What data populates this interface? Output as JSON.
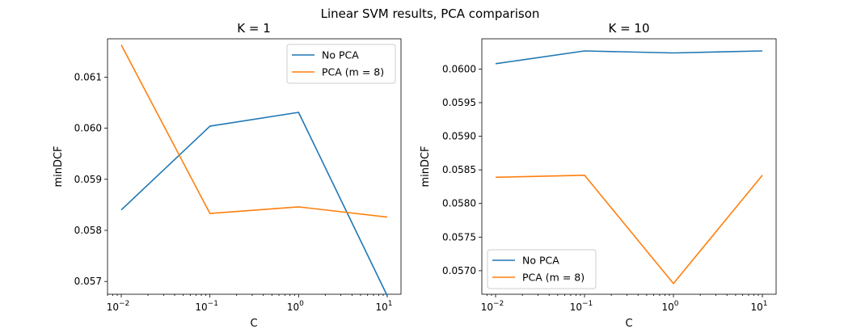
{
  "figure": {
    "title": "Linear SVM results, PCA comparison"
  },
  "chart_data": [
    {
      "type": "line",
      "title": "K = 1",
      "xlabel": "C",
      "ylabel": "minDCF",
      "xscale": "log",
      "x": [
        0.01,
        0.1,
        1,
        10
      ],
      "xticks": [
        {
          "base": "10",
          "exp": "−2"
        },
        {
          "base": "10",
          "exp": "−1"
        },
        {
          "base": "10",
          "exp": "0"
        },
        {
          "base": "10",
          "exp": "1"
        }
      ],
      "yticks": [
        "0.057",
        "0.058",
        "0.059",
        "0.060",
        "0.061"
      ],
      "ylim": [
        0.05675,
        0.06175
      ],
      "legend_position": "upper-right",
      "series": [
        {
          "name": "No PCA",
          "color": "#1f77b4",
          "values": [
            0.0584,
            0.06004,
            0.06031,
            0.05672
          ]
        },
        {
          "name": "PCA (m = 8)",
          "color": "#ff7f0e",
          "values": [
            0.06163,
            0.05833,
            0.05846,
            0.05826
          ]
        }
      ]
    },
    {
      "type": "line",
      "title": "K = 10",
      "xlabel": "C",
      "ylabel": "minDCF",
      "xscale": "log",
      "x": [
        0.01,
        0.1,
        1,
        10
      ],
      "xticks": [
        {
          "base": "10",
          "exp": "−2"
        },
        {
          "base": "10",
          "exp": "−1"
        },
        {
          "base": "10",
          "exp": "0"
        },
        {
          "base": "10",
          "exp": "1"
        }
      ],
      "yticks": [
        "0.0570",
        "0.0575",
        "0.0580",
        "0.0585",
        "0.0590",
        "0.0595",
        "0.0600"
      ],
      "ylim": [
        0.05665,
        0.06045
      ],
      "legend_position": "lower-left",
      "series": [
        {
          "name": "No PCA",
          "color": "#1f77b4",
          "values": [
            0.06008,
            0.06027,
            0.06024,
            0.06027
          ]
        },
        {
          "name": "PCA (m = 8)",
          "color": "#ff7f0e",
          "values": [
            0.05839,
            0.05842,
            0.05681,
            0.05842
          ]
        }
      ]
    }
  ]
}
